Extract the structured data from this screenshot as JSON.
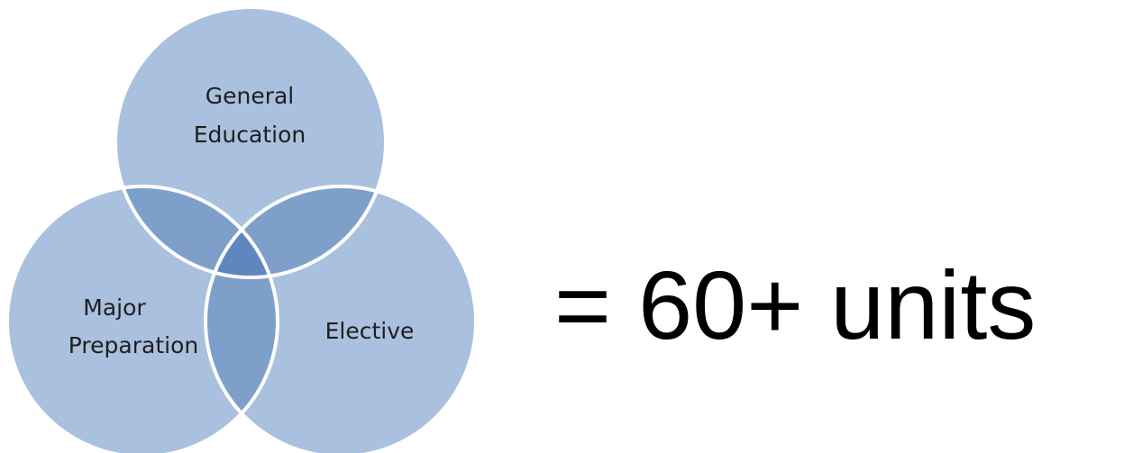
{
  "diagram": {
    "circles": [
      {
        "id": "general-education",
        "lines": [
          "General",
          "Education"
        ]
      },
      {
        "id": "major-preparation",
        "lines": [
          "Major",
          "Preparation"
        ]
      },
      {
        "id": "elective",
        "lines": [
          "Elective"
        ]
      }
    ],
    "colors": {
      "circle_fill": "#a9c0de",
      "overlap_fill": "#7f9fcb",
      "center_fill": "#5f86bf",
      "circle_stroke": "#ffffff"
    }
  },
  "equation": {
    "text": "= 60+ units"
  }
}
